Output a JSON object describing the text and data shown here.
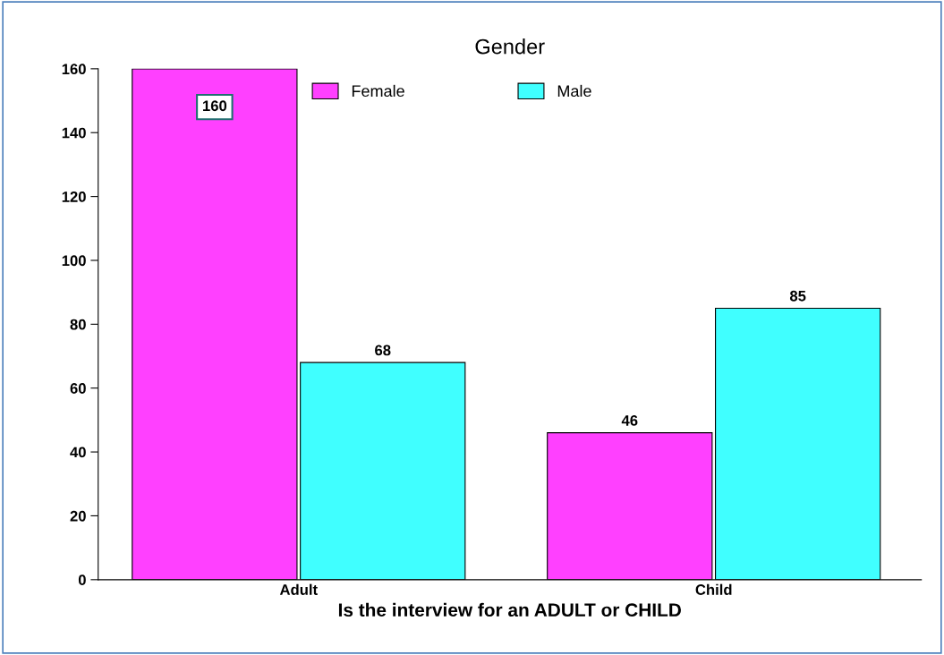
{
  "chart_data": {
    "type": "bar",
    "title": "Gender",
    "xlabel": "Is the interview for an ADULT or CHILD",
    "categories": [
      "Adult",
      "Child"
    ],
    "series": [
      {
        "name": "Female",
        "color": "#ff40ff",
        "values": [
          160,
          46
        ]
      },
      {
        "name": "Male",
        "color": "#40ffff",
        "values": [
          68,
          85
        ]
      }
    ],
    "ylim": [
      0,
      160
    ],
    "yticks": [
      0,
      20,
      40,
      60,
      80,
      100,
      120,
      140,
      160
    ],
    "data_labels": true,
    "legend": "top",
    "grid": false
  }
}
